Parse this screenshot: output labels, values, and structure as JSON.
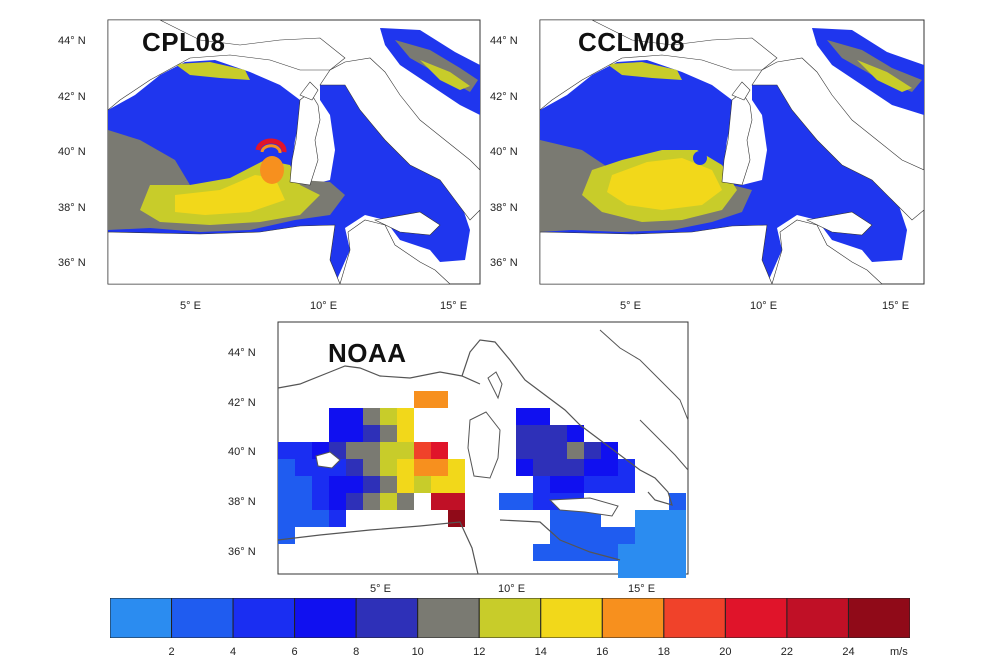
{
  "maps": [
    {
      "id": "cpl08",
      "title": "CPL08",
      "lat_labels": [
        "44° N",
        "42° N",
        "40° N",
        "38° N",
        "36° N"
      ],
      "lon_labels": [
        "5° E",
        "10° E",
        "15° E"
      ]
    },
    {
      "id": "cclm08",
      "title": "CCLM08",
      "lat_labels": [
        "44° N",
        "42° N",
        "40° N",
        "38° N",
        "36° N"
      ],
      "lon_labels": [
        "5° E",
        "10° E",
        "15° E"
      ]
    },
    {
      "id": "noaa",
      "title": "NOAA",
      "lat_labels": [
        "44° N",
        "42° N",
        "40° N",
        "38° N",
        "36° N"
      ],
      "lon_labels": [
        "5° E",
        "10° E",
        "15° E"
      ]
    }
  ],
  "colorbar": {
    "unit": "m/s",
    "ticks": [
      "2",
      "4",
      "6",
      "8",
      "10",
      "12",
      "14",
      "16",
      "18",
      "20",
      "22",
      "24"
    ],
    "colors": [
      "#2b8cf0",
      "#1f5cf0",
      "#1a2ef2",
      "#1010f0",
      "#2e30b8",
      "#7a7a72",
      "#c8cc2a",
      "#f2d81a",
      "#f7901e",
      "#f0422a",
      "#e0142a",
      "#c01026",
      "#900a18"
    ]
  }
}
